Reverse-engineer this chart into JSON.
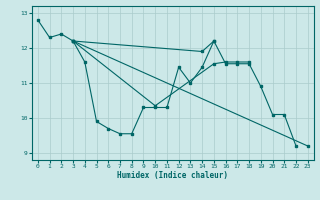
{
  "title": "",
  "xlabel": "Humidex (Indice chaleur)",
  "ylabel": "",
  "bg_color": "#cce8e8",
  "grid_color": "#aacccc",
  "line_color": "#006666",
  "xlim": [
    -0.5,
    23.5
  ],
  "ylim": [
    8.8,
    13.2
  ],
  "yticks": [
    9,
    10,
    11,
    12,
    13
  ],
  "xticks": [
    0,
    1,
    2,
    3,
    4,
    5,
    6,
    7,
    8,
    9,
    10,
    11,
    12,
    13,
    14,
    15,
    16,
    17,
    18,
    19,
    20,
    21,
    22,
    23
  ],
  "series_data": [
    {
      "x": [
        0,
        1,
        2,
        3,
        4,
        5,
        6,
        7,
        8,
        9,
        10,
        11,
        12,
        13,
        14,
        15,
        16,
        17,
        18,
        19,
        20,
        21,
        22
      ],
      "y": [
        12.8,
        12.3,
        12.4,
        12.2,
        11.6,
        9.9,
        9.7,
        9.55,
        9.55,
        10.3,
        10.3,
        10.3,
        11.45,
        11.0,
        11.45,
        12.2,
        11.55,
        11.55,
        11.55,
        10.9,
        10.1,
        10.1,
        9.2
      ]
    },
    {
      "x": [
        3,
        14,
        15
      ],
      "y": [
        12.2,
        11.9,
        12.2
      ]
    },
    {
      "x": [
        3,
        10,
        15,
        16,
        17,
        18
      ],
      "y": [
        12.2,
        10.35,
        11.55,
        11.6,
        11.6,
        11.6
      ]
    },
    {
      "x": [
        3,
        23
      ],
      "y": [
        12.2,
        9.2
      ]
    }
  ]
}
